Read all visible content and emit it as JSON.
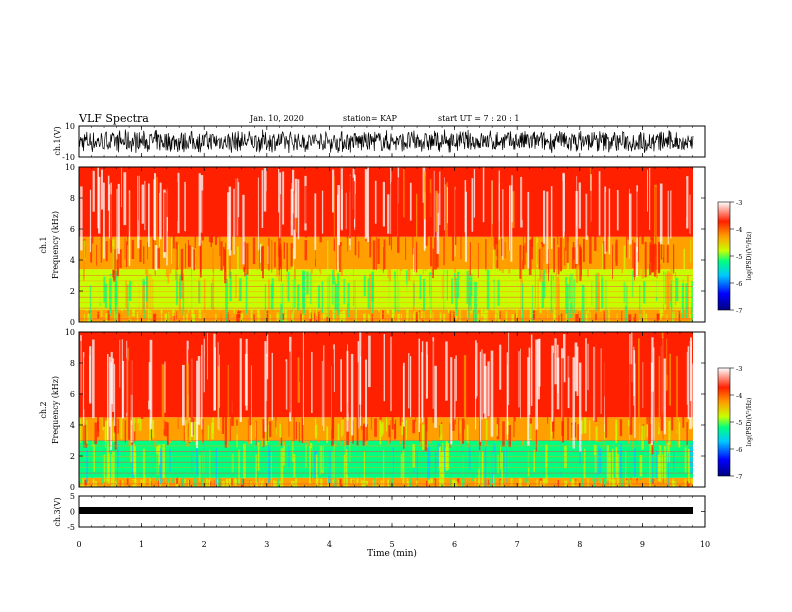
{
  "header": {
    "title": "VLF Spectra",
    "date": "Jan. 10, 2020",
    "station": "station= KAP",
    "start": "start  UT =   7 : 20 : 1"
  },
  "chart_data": [
    {
      "type": "line",
      "panel": "ch1-waveform",
      "ylabel": "ch.1(V)",
      "ylim": [
        -10,
        10
      ],
      "yticks": [
        "10",
        "-10"
      ],
      "xlim": [
        0,
        10
      ],
      "description_values": "dense noise waveform spanning roughly -8 to +8 V"
    },
    {
      "type": "heatmap",
      "panel": "ch1-spectrogram",
      "ylabel": "ch.1",
      "ylabel2": "Frequency (kHz)",
      "ylim": [
        0,
        10
      ],
      "yticks": [
        "0",
        "2",
        "4",
        "6",
        "8",
        "10"
      ],
      "xlim": [
        0,
        9.83
      ],
      "bands": [
        {
          "f_low": 0,
          "f_high": 0.8,
          "level": -4.3
        },
        {
          "f_low": 0.8,
          "f_high": 3.4,
          "level": -4.9
        },
        {
          "f_low": 3.4,
          "f_high": 5.5,
          "level": -3.9
        },
        {
          "f_low": 5.5,
          "f_high": 10,
          "level": -3.3
        }
      ],
      "colorbar": {
        "label": "log(PSD)(V²/Hz)",
        "min": -7,
        "max": -3,
        "ticks": [
          "-3",
          "-4",
          "-5",
          "-6",
          "-7"
        ]
      }
    },
    {
      "type": "heatmap",
      "panel": "ch2-spectrogram",
      "ylabel": "ch.2",
      "ylabel2": "Frequency (kHz)",
      "ylim": [
        0,
        10
      ],
      "yticks": [
        "0",
        "2",
        "4",
        "6",
        "8",
        "10"
      ],
      "xlim": [
        0,
        9.83
      ],
      "bands": [
        {
          "f_low": 0,
          "f_high": 0.6,
          "level": -4.3
        },
        {
          "f_low": 0.6,
          "f_high": 3.0,
          "level": -5.2
        },
        {
          "f_low": 3.0,
          "f_high": 4.5,
          "level": -4.1
        },
        {
          "f_low": 4.5,
          "f_high": 10,
          "level": -3.3
        }
      ],
      "colorbar": {
        "label": "log(PSD)(V²/Hz)",
        "min": -7,
        "max": -3,
        "ticks": [
          "-3",
          "-4",
          "-5",
          "-6",
          "-7"
        ]
      }
    },
    {
      "type": "line",
      "panel": "ch3-waveform",
      "ylabel": "ch.3(V)",
      "ylim": [
        -5,
        5
      ],
      "yticks": [
        "5",
        "0",
        "-5"
      ],
      "xlim": [
        0,
        9.83
      ],
      "description_values": "constant thick trace near -1 V"
    }
  ],
  "xaxis": {
    "label": "Time (min)",
    "ticks": [
      "0",
      "1",
      "2",
      "3",
      "4",
      "5",
      "6",
      "7",
      "8",
      "9",
      "10"
    ]
  },
  "colors": {
    "spectrogram_scale": [
      "#000080",
      "#0000ff",
      "#00c8ff",
      "#00ff80",
      "#c8ff00",
      "#ffa000",
      "#ff2000",
      "#ffffff"
    ]
  }
}
